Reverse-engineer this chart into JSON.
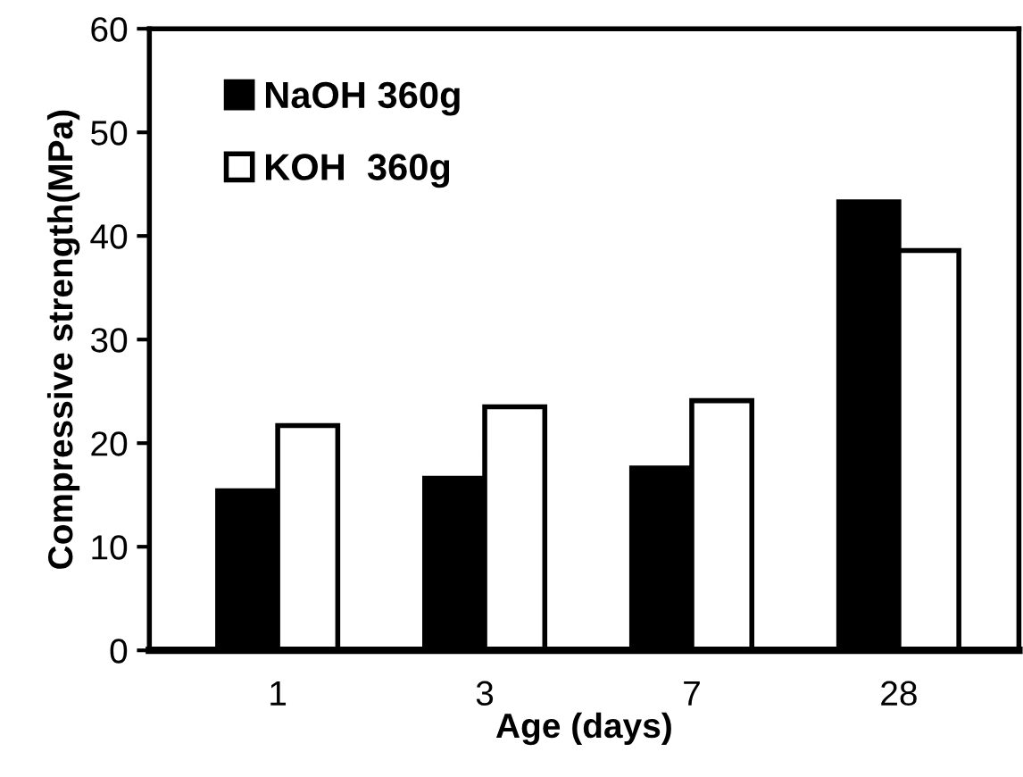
{
  "chart_data": {
    "type": "bar",
    "xlabel": "Age (days)",
    "ylabel": "Compressive strength(MPa)",
    "categories": [
      "1",
      "3",
      "7",
      "28"
    ],
    "series": [
      {
        "name": "NaOH 360g",
        "color": "#000000",
        "values": [
          15.4,
          16.6,
          17.6,
          43.3
        ]
      },
      {
        "name": "KOH  360g",
        "color": "#ffffff",
        "values": [
          21.7,
          23.5,
          24.1,
          38.6
        ]
      }
    ],
    "ylim": [
      0,
      60
    ],
    "yticks": [
      0,
      10,
      20,
      30,
      40,
      50,
      60
    ],
    "grid": false,
    "legend": "top left"
  }
}
